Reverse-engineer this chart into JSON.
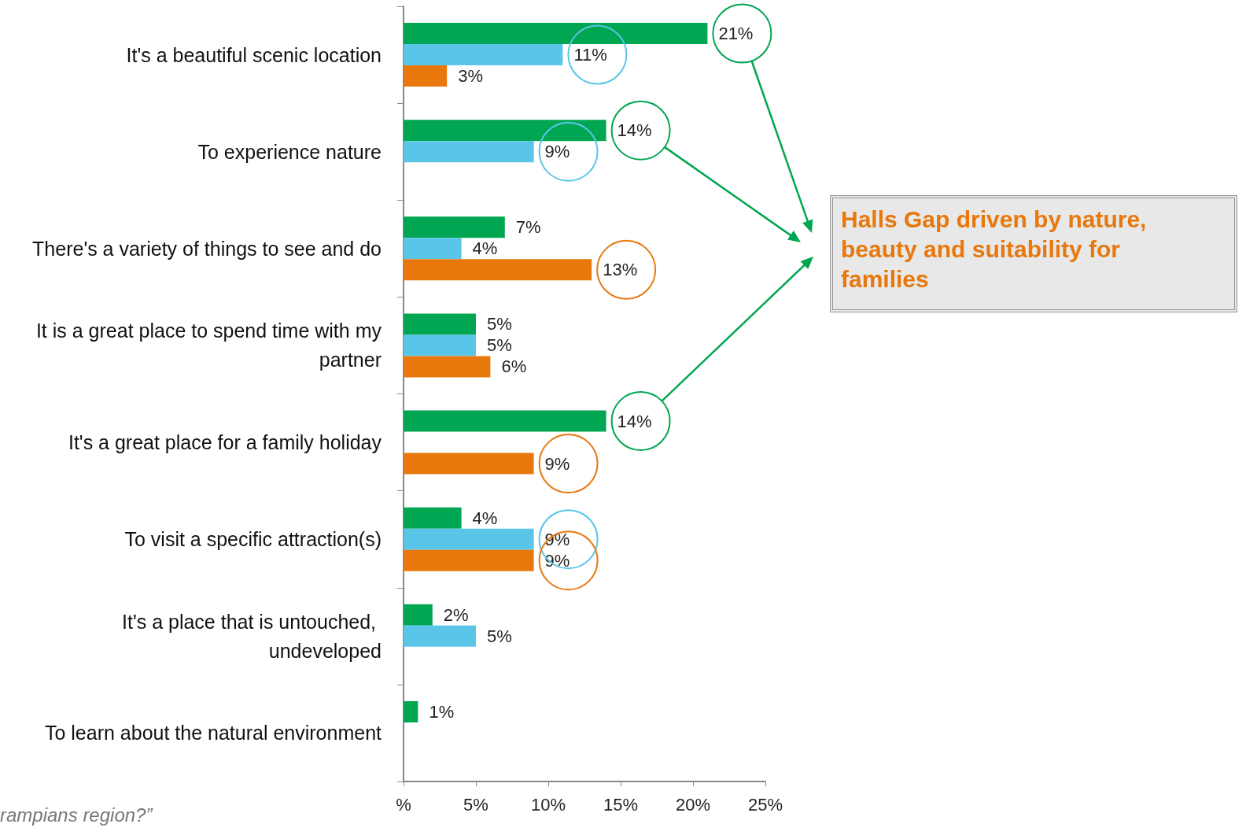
{
  "chart_data": {
    "type": "bar",
    "orientation": "horizontal",
    "categories": [
      "It's a beautiful scenic location",
      "To experience nature",
      "There's a variety of things to see and do",
      "It is a great place to spend time with my partner",
      "It's a great place for a family holiday",
      "To visit a specific attraction(s)",
      "It's a place that is untouched, undeveloped",
      "To learn about the natural environment"
    ],
    "series": [
      {
        "color": "#00a651",
        "values": [
          21,
          14,
          7,
          5,
          14,
          4,
          2,
          1
        ],
        "value_labels": [
          "21%",
          "14%",
          "7%",
          "5%",
          "14%",
          "4%",
          "2%",
          "1%"
        ]
      },
      {
        "color": "#5bc5e8",
        "values": [
          11,
          9,
          4,
          5,
          null,
          9,
          5,
          null
        ],
        "value_labels": [
          "11%",
          "9%",
          "4%",
          "5%",
          null,
          "9%",
          "5%",
          null
        ]
      },
      {
        "color": "#e8780c",
        "values": [
          3,
          null,
          13,
          6,
          9,
          9,
          null,
          null
        ],
        "value_labels": [
          "3%",
          null,
          "13%",
          "6%",
          "9%",
          "9%",
          null,
          null
        ]
      }
    ],
    "xlim": [
      0,
      25
    ],
    "xticks": [
      {
        "value": 0,
        "label": "%"
      },
      {
        "value": 5,
        "label": "5%"
      },
      {
        "value": 10,
        "label": "10%"
      },
      {
        "value": 15,
        "label": "15%"
      },
      {
        "value": 20,
        "label": "20%"
      },
      {
        "value": 25,
        "label": "25%"
      }
    ],
    "grid": false,
    "annotations": [
      "Halls Gap driven by nature, beauty and suitability for families",
      "rampians region?”"
    ]
  }
}
